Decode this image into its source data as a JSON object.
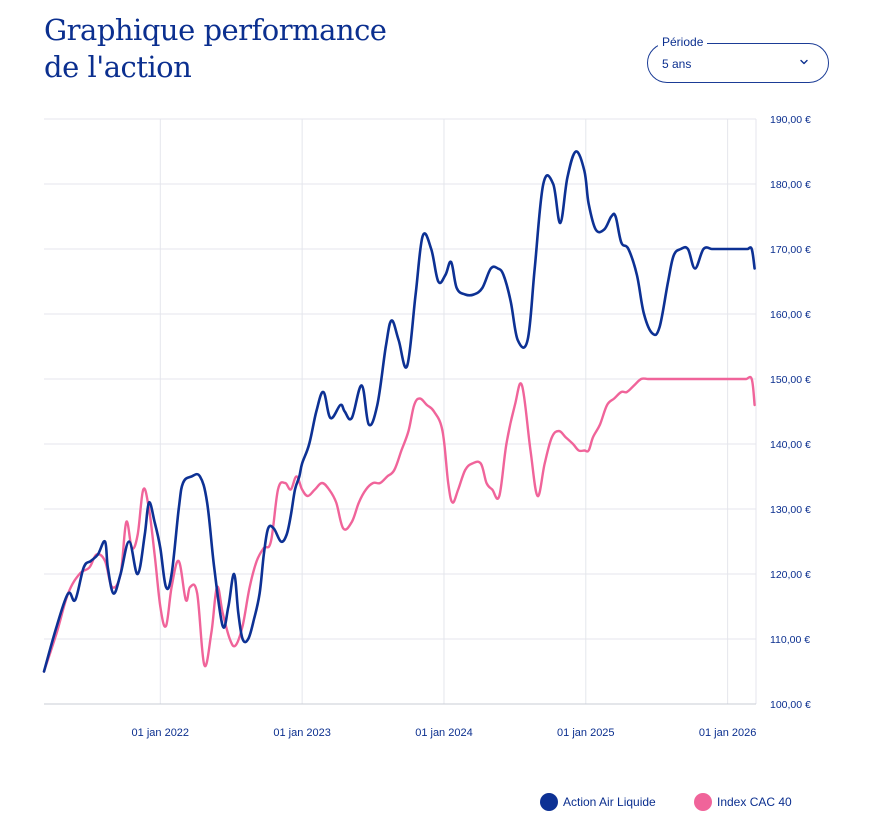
{
  "header": {
    "title_line1": "Graphique performance",
    "title_line2": "de l'action"
  },
  "period_select": {
    "label": "Période",
    "value": "5 ans"
  },
  "legend": [
    {
      "name": "Action Air Liquide",
      "color": "#0d3194"
    },
    {
      "name": "Index CAC 40",
      "color": "#f0649a"
    }
  ],
  "chart_data": {
    "type": "line",
    "title": "Graphique performance de l'action",
    "x_ticks": [
      "01 jan 2022",
      "01 jan 2023",
      "01 jan 2024",
      "01 jan 2025",
      "01 jan 2026"
    ],
    "x_tick_years": [
      2022,
      2023,
      2024,
      2025,
      2026
    ],
    "xlim": [
      2021.18,
      2026.2
    ],
    "y_ticks": [
      100,
      110,
      120,
      130,
      140,
      150,
      160,
      170,
      180,
      190
    ],
    "y_tick_labels": [
      "100,00 €",
      "110,00 €",
      "120,00 €",
      "130,00 €",
      "140,00 €",
      "150,00 €",
      "160,00 €",
      "170,00 €",
      "180,00 €",
      "190,00 €"
    ],
    "ylim": [
      100,
      190
    ],
    "y_axis_position": "right",
    "grid": true,
    "series": [
      {
        "name": "Action Air Liquide",
        "color": "#0d3194",
        "x": [
          2021.18,
          2021.27,
          2021.35,
          2021.4,
          2021.46,
          2021.51,
          2021.56,
          2021.61,
          2021.63,
          2021.67,
          2021.72,
          2021.78,
          2021.84,
          2021.89,
          2021.92,
          2021.96,
          2022.0,
          2022.04,
          2022.08,
          2022.13,
          2022.16,
          2022.22,
          2022.28,
          2022.33,
          2022.38,
          2022.44,
          2022.48,
          2022.52,
          2022.55,
          2022.58,
          2022.62,
          2022.66,
          2022.7,
          2022.73,
          2022.76,
          2022.8,
          2022.85,
          2022.89,
          2022.92,
          2022.95,
          2022.98,
          2023.0,
          2023.05,
          2023.1,
          2023.15,
          2023.2,
          2023.27,
          2023.3,
          2023.35,
          2023.42,
          2023.47,
          2023.53,
          2023.59,
          2023.63,
          2023.68,
          2023.74,
          2023.8,
          2023.85,
          2023.91,
          2023.96,
          2024.01,
          2024.05,
          2024.09,
          2024.15,
          2024.21,
          2024.27,
          2024.33,
          2024.38,
          2024.42,
          2024.47,
          2024.52,
          2024.59,
          2024.64,
          2024.7,
          2024.77,
          2024.82,
          2024.87,
          2024.93,
          2024.99,
          2025.02,
          2025.07,
          2025.13,
          2025.18,
          2025.21,
          2025.25,
          2025.3,
          2025.36,
          2025.41,
          2025.47,
          2025.52,
          2025.58,
          2025.62,
          2025.67,
          2025.72,
          2025.77,
          2025.83,
          2025.89,
          2025.93,
          2025.99,
          2026.02,
          2026.06,
          2026.11,
          2026.14,
          2026.17,
          2026.19
        ],
        "values": [
          105,
          112,
          117,
          116,
          121,
          122,
          123,
          125,
          121,
          117,
          120,
          125,
          120,
          126,
          131,
          128,
          124,
          118,
          120,
          130,
          134,
          135,
          135,
          131,
          121,
          112,
          115,
          120,
          114,
          110,
          110,
          113,
          117,
          123,
          127,
          127,
          125,
          126,
          129,
          133,
          135,
          137,
          140,
          145,
          148,
          144,
          146,
          145,
          144,
          149,
          143,
          146,
          155,
          159,
          156,
          152,
          163,
          172,
          170,
          165,
          166,
          168,
          164,
          163,
          163,
          164,
          167,
          167,
          166,
          162,
          156,
          156,
          167,
          180,
          180,
          174,
          181,
          185,
          182,
          177,
          173,
          173,
          175,
          175,
          171,
          170,
          166,
          160,
          157,
          158,
          165,
          169,
          170,
          170,
          167,
          170,
          170,
          170,
          170,
          170,
          170,
          170,
          170,
          170,
          167
        ]
      },
      {
        "name": "Index CAC 40",
        "color": "#f0649a",
        "x": [
          2021.18,
          2021.27,
          2021.35,
          2021.43,
          2021.5,
          2021.55,
          2021.61,
          2021.66,
          2021.72,
          2021.76,
          2021.8,
          2021.84,
          2021.88,
          2021.92,
          2021.96,
          2022.0,
          2022.04,
          2022.08,
          2022.13,
          2022.18,
          2022.21,
          2022.26,
          2022.31,
          2022.36,
          2022.4,
          2022.44,
          2022.49,
          2022.53,
          2022.58,
          2022.63,
          2022.68,
          2022.73,
          2022.78,
          2022.83,
          2022.88,
          2022.92,
          2022.96,
          2023.0,
          2023.04,
          2023.09,
          2023.14,
          2023.19,
          2023.24,
          2023.29,
          2023.35,
          2023.4,
          2023.45,
          2023.5,
          2023.55,
          2023.6,
          2023.65,
          2023.7,
          2023.75,
          2023.79,
          2023.83,
          2023.88,
          2023.93,
          2023.99,
          2024.03,
          2024.06,
          2024.1,
          2024.15,
          2024.2,
          2024.26,
          2024.3,
          2024.34,
          2024.39,
          2024.44,
          2024.5,
          2024.55,
          2024.61,
          2024.66,
          2024.71,
          2024.76,
          2024.81,
          2024.86,
          2024.91,
          2024.95,
          2024.99,
          2025.02,
          2025.05,
          2025.1,
          2025.15,
          2025.2,
          2025.25,
          2025.29,
          2025.34,
          2025.39,
          2025.44,
          2025.5,
          2025.56,
          2025.61,
          2025.67,
          2025.72,
          2025.77,
          2025.82,
          2025.88,
          2025.93,
          2025.98,
          2026.04,
          2026.09,
          2026.13,
          2026.17,
          2026.19
        ],
        "values": [
          105,
          111,
          117,
          120,
          121,
          123,
          122,
          118,
          120,
          128,
          124,
          126,
          133,
          130,
          123,
          115,
          112,
          118,
          122,
          116,
          118,
          117,
          106,
          111,
          118,
          114,
          110,
          109,
          112,
          118,
          122,
          124,
          125,
          133,
          134,
          133,
          135,
          133,
          132,
          133,
          134,
          133,
          131,
          127,
          128,
          131,
          133,
          134,
          134,
          135,
          136,
          139,
          142,
          146,
          147,
          146,
          145,
          142,
          134,
          131,
          133,
          136,
          137,
          137,
          134,
          133,
          132,
          140,
          146,
          149,
          139,
          132,
          137,
          141,
          142,
          141,
          140,
          139,
          139,
          139,
          141,
          143,
          146,
          147,
          148,
          148,
          149,
          150,
          150,
          150,
          150,
          150,
          150,
          150,
          150,
          150,
          150,
          150,
          150,
          150,
          150,
          150,
          150,
          146
        ]
      }
    ]
  }
}
